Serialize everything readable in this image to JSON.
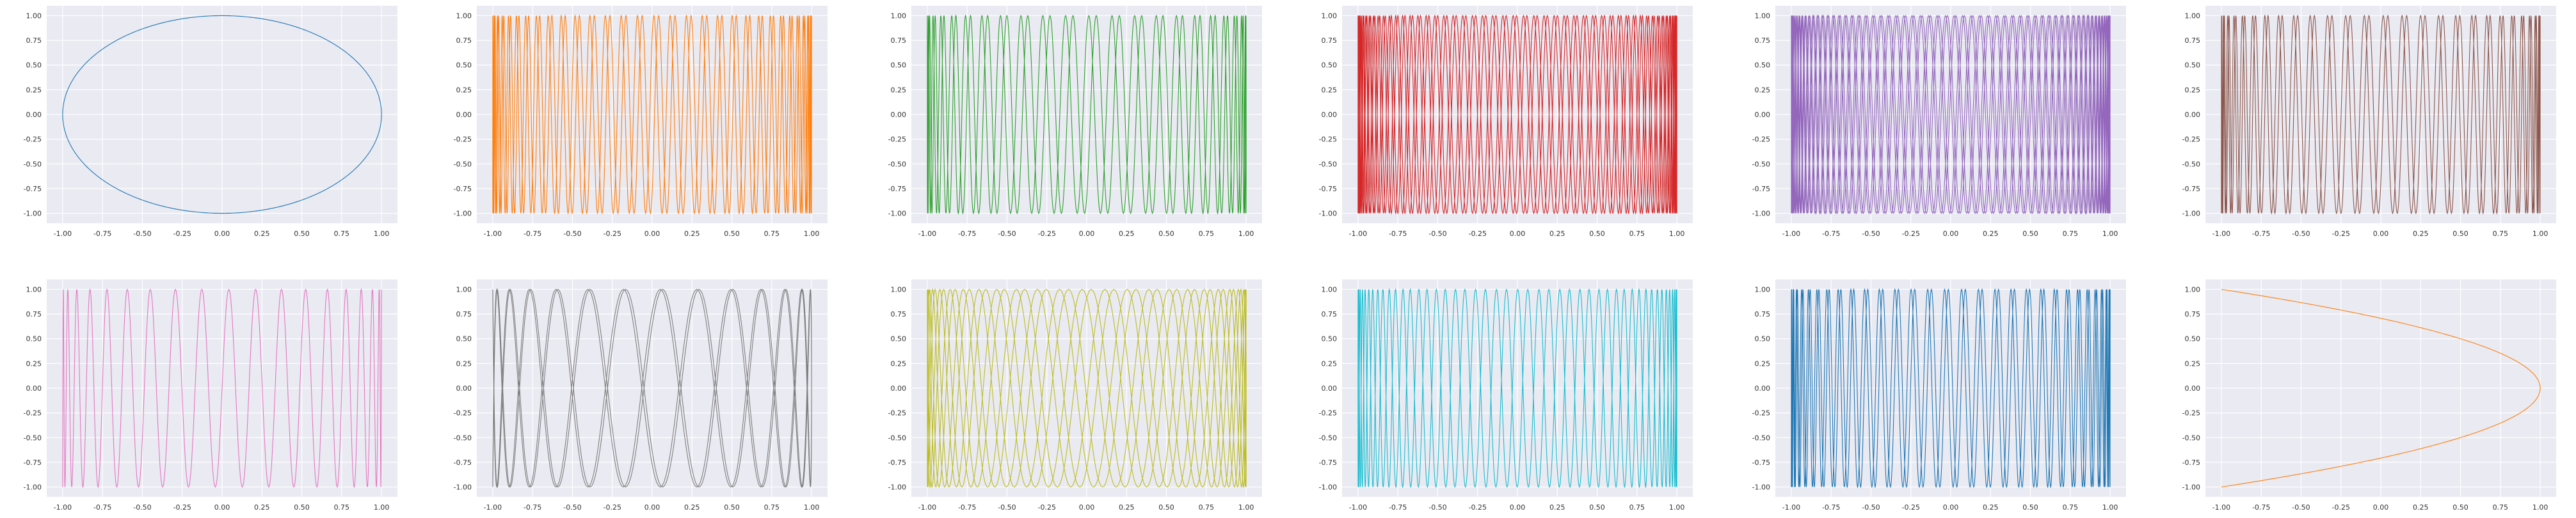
{
  "figure": {
    "style": "seaborn-darkgrid",
    "grid": true,
    "background": "#eaeaf2",
    "gridline_color": "#ffffff",
    "layout": "2 rows x 6 columns"
  },
  "chart_data": [
    {
      "type": "line",
      "equation": {
        "a": 1,
        "b": 1,
        "d": 1.5708
      },
      "color": "#1f77b4",
      "xlim": [
        -1.1,
        1.1
      ],
      "ylim": [
        -1.1,
        1.1
      ],
      "xticks": [
        "-1.00",
        "-0.75",
        "-0.50",
        "-0.25",
        "0.00",
        "0.25",
        "0.50",
        "0.75",
        "1.00"
      ],
      "yticks": [
        "1.00",
        "0.75",
        "0.50",
        "0.25",
        "0.00",
        "-0.25",
        "-0.50",
        "-0.75",
        "-1.00"
      ]
    },
    {
      "type": "line",
      "equation": {
        "a": 1,
        "b": 61,
        "d": 0.5
      },
      "color": "#ff7f0e",
      "xlim": [
        -1.1,
        1.1
      ],
      "ylim": [
        -1.1,
        1.1
      ],
      "xticks": [
        "-1.00",
        "-0.75",
        "-0.50",
        "-0.25",
        "0.00",
        "0.25",
        "0.50",
        "0.75",
        "1.00"
      ],
      "yticks": [
        "1.00",
        "0.75",
        "0.50",
        "0.25",
        "0.00",
        "-0.25",
        "-0.50",
        "-0.75",
        "-1.00"
      ]
    },
    {
      "type": "line",
      "equation": {
        "a": 1,
        "b": 43,
        "d": 0.9
      },
      "color": "#2ca02c",
      "xlim": [
        -1.1,
        1.1
      ],
      "ylim": [
        -1.1,
        1.1
      ],
      "xticks": [
        "-1.00",
        "-0.75",
        "-0.50",
        "-0.25",
        "0.00",
        "0.25",
        "0.50",
        "0.75",
        "1.00"
      ],
      "yticks": [
        "1.00",
        "0.75",
        "0.50",
        "0.25",
        "0.00",
        "-0.25",
        "-0.50",
        "-0.75",
        "-1.00"
      ]
    },
    {
      "type": "line",
      "equation": {
        "a": 2,
        "b": 97,
        "d": 0.2
      },
      "color": "#d62728",
      "xlim": [
        -1.1,
        1.1
      ],
      "ylim": [
        -1.1,
        1.1
      ],
      "xticks": [
        "-1.00",
        "-0.75",
        "-0.50",
        "-0.25",
        "0.00",
        "0.25",
        "0.50",
        "0.75",
        "1.00"
      ],
      "yticks": [
        "1.00",
        "0.75",
        "0.50",
        "0.25",
        "0.00",
        "-0.25",
        "-0.50",
        "-0.75",
        "-1.00"
      ]
    },
    {
      "type": "line",
      "equation": {
        "a": 3,
        "b": 118,
        "d": 0.3
      },
      "color": "#9467bd",
      "xlim": [
        -1.1,
        1.1
      ],
      "ylim": [
        -1.1,
        1.1
      ],
      "xticks": [
        "-1.00",
        "-0.75",
        "-0.50",
        "-0.25",
        "0.00",
        "0.25",
        "0.50",
        "0.75",
        "1.00"
      ],
      "yticks": [
        "1.00",
        "0.75",
        "0.50",
        "0.25",
        "0.00",
        "-0.25",
        "-0.50",
        "-0.75",
        "-1.00"
      ]
    },
    {
      "type": "line",
      "equation": {
        "a": 1,
        "b": 53,
        "d": 1.2
      },
      "color": "#8c564b",
      "xlim": [
        -1.1,
        1.1
      ],
      "ylim": [
        -1.1,
        1.1
      ],
      "xticks": [
        "-1.00",
        "-0.75",
        "-0.50",
        "-0.25",
        "0.00",
        "0.25",
        "0.50",
        "0.75",
        "1.00"
      ],
      "yticks": [
        "1.00",
        "0.75",
        "0.50",
        "0.25",
        "0.00",
        "-0.25",
        "-0.50",
        "-0.75",
        "-1.00"
      ]
    },
    {
      "type": "line",
      "equation": {
        "a": 1,
        "b": 37,
        "d": 0.0
      },
      "color": "#e377c2",
      "xlim": [
        -1.1,
        1.1
      ],
      "ylim": [
        -1.1,
        1.1
      ],
      "xticks": [
        "-1.00",
        "-0.75",
        "-0.50",
        "-0.25",
        "0.00",
        "0.25",
        "0.50",
        "0.75",
        "1.00"
      ],
      "yticks": [
        "1.00",
        "0.75",
        "0.50",
        "0.25",
        "0.00",
        "-0.25",
        "-0.50",
        "-0.75",
        "-1.00"
      ]
    },
    {
      "type": "line",
      "equation": {
        "a": 2,
        "b": 27,
        "d": 0.4
      },
      "color": "#7f7f7f",
      "xlim": [
        -1.1,
        1.1
      ],
      "ylim": [
        -1.1,
        1.1
      ],
      "xticks": [
        "-1.00",
        "-0.75",
        "-0.50",
        "-0.25",
        "0.00",
        "0.25",
        "0.50",
        "0.75",
        "1.00"
      ],
      "yticks": [
        "1.00",
        "0.75",
        "0.50",
        "0.25",
        "0.00",
        "-0.25",
        "-0.50",
        "-0.75",
        "-1.00"
      ]
    },
    {
      "type": "line",
      "equation": {
        "a": 3,
        "b": 44,
        "d": 0.15
      },
      "color": "#bcbd22",
      "xlim": [
        -1.1,
        1.1
      ],
      "ylim": [
        -1.1,
        1.1
      ],
      "xticks": [
        "-1.00",
        "-0.75",
        "-0.50",
        "-0.25",
        "0.00",
        "0.25",
        "0.50",
        "0.75",
        "1.00"
      ],
      "yticks": [
        "1.00",
        "0.75",
        "0.50",
        "0.25",
        "0.00",
        "-0.25",
        "-0.50",
        "-0.75",
        "-1.00"
      ]
    },
    {
      "type": "line",
      "equation": {
        "a": 1,
        "b": 47,
        "d": 0.7
      },
      "color": "#17becf",
      "xlim": [
        -1.1,
        1.1
      ],
      "ylim": [
        -1.1,
        1.1
      ],
      "xticks": [
        "-1.00",
        "-0.75",
        "-0.50",
        "-0.25",
        "0.00",
        "0.25",
        "0.50",
        "0.75",
        "1.00"
      ],
      "yticks": [
        "1.00",
        "0.75",
        "0.50",
        "0.25",
        "0.00",
        "-0.25",
        "-0.50",
        "-0.75",
        "-1.00"
      ]
    },
    {
      "type": "line",
      "equation": {
        "a": 1,
        "b": 59,
        "d": 1.0
      },
      "color": "#1f77b4",
      "xlim": [
        -1.1,
        1.1
      ],
      "ylim": [
        -1.1,
        1.1
      ],
      "xticks": [
        "-1.00",
        "-0.75",
        "-0.50",
        "-0.25",
        "0.00",
        "0.25",
        "0.50",
        "0.75",
        "1.00"
      ],
      "yticks": [
        "1.00",
        "0.75",
        "0.50",
        "0.25",
        "0.00",
        "-0.25",
        "-0.50",
        "-0.75",
        "-1.00"
      ]
    },
    {
      "type": "line",
      "equation": {
        "a": 2,
        "b": 1,
        "d": 1.5708
      },
      "color": "#ff7f0e",
      "xlim": [
        -1.1,
        1.1
      ],
      "ylim": [
        -1.1,
        1.1
      ],
      "xticks": [
        "-1.00",
        "-0.75",
        "-0.50",
        "-0.25",
        "0.00",
        "0.25",
        "0.50",
        "0.75",
        "1.00"
      ],
      "yticks": [
        "1.00",
        "0.75",
        "0.50",
        "0.25",
        "0.00",
        "-0.25",
        "-0.50",
        "-0.75",
        "-1.00"
      ]
    }
  ]
}
